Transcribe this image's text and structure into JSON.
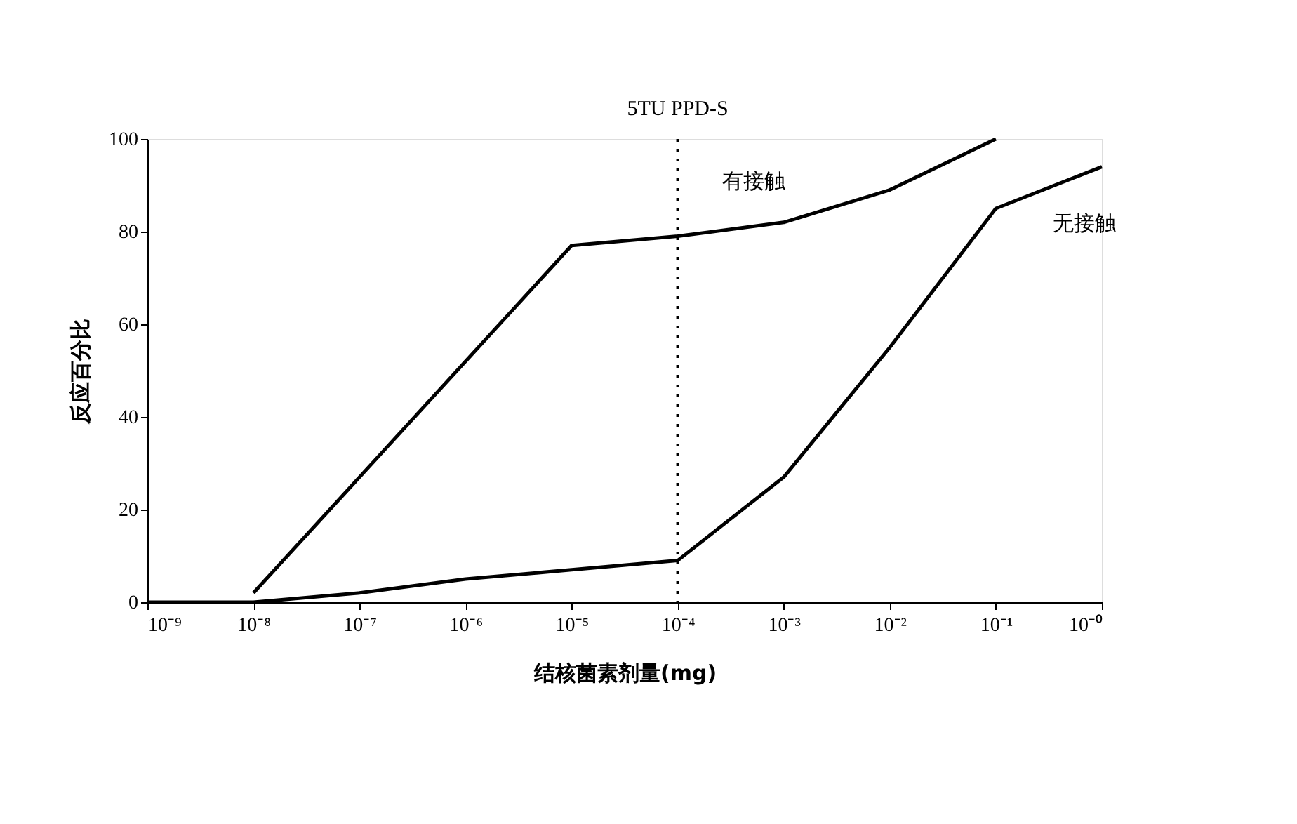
{
  "chart_data": {
    "type": "line",
    "xlabel": "结核菌素剂量(mg)",
    "ylabel": "反应百分比",
    "log": "x",
    "xlim": [
      1e-09,
      1
    ],
    "ylim": [
      0,
      100
    ],
    "xticks": [
      {
        "value": 1e-09,
        "label": "10⁻⁹"
      },
      {
        "value": 1e-08,
        "label": "10⁻⁸"
      },
      {
        "value": 1e-07,
        "label": "10⁻⁷"
      },
      {
        "value": 1e-06,
        "label": "10⁻⁶"
      },
      {
        "value": 1e-05,
        "label": "10⁻⁵"
      },
      {
        "value": 0.0001,
        "label": "10⁻⁴"
      },
      {
        "value": 0.001,
        "label": "10⁻³"
      },
      {
        "value": 0.01,
        "label": "10⁻²"
      },
      {
        "value": 0.1,
        "label": "10⁻¹"
      },
      {
        "value": 1,
        "label": "10⁻⁰"
      }
    ],
    "yticks": [
      0,
      20,
      40,
      60,
      80,
      100
    ],
    "grid": false,
    "marker": "none",
    "line_style": "solid",
    "series": [
      {
        "name": "有接触",
        "color": "#000000",
        "x": [
          1e-08,
          1e-05,
          0.0001,
          0.001,
          0.01,
          0.1
        ],
        "values": [
          2,
          77,
          79,
          82,
          89,
          100
        ]
      },
      {
        "name": "无接触",
        "color": "#000000",
        "x": [
          1e-09,
          1e-08,
          1e-07,
          1e-06,
          1e-05,
          0.0001,
          0.001,
          0.01,
          0.1,
          1
        ],
        "values": [
          0,
          0,
          2,
          5,
          7,
          9,
          27,
          55,
          85,
          94
        ]
      }
    ],
    "ref_lines": [
      {
        "axis": "x",
        "value": 0.0001,
        "label": "5TU PPD-S",
        "color": "#000000",
        "line_style": "dotted"
      }
    ]
  }
}
